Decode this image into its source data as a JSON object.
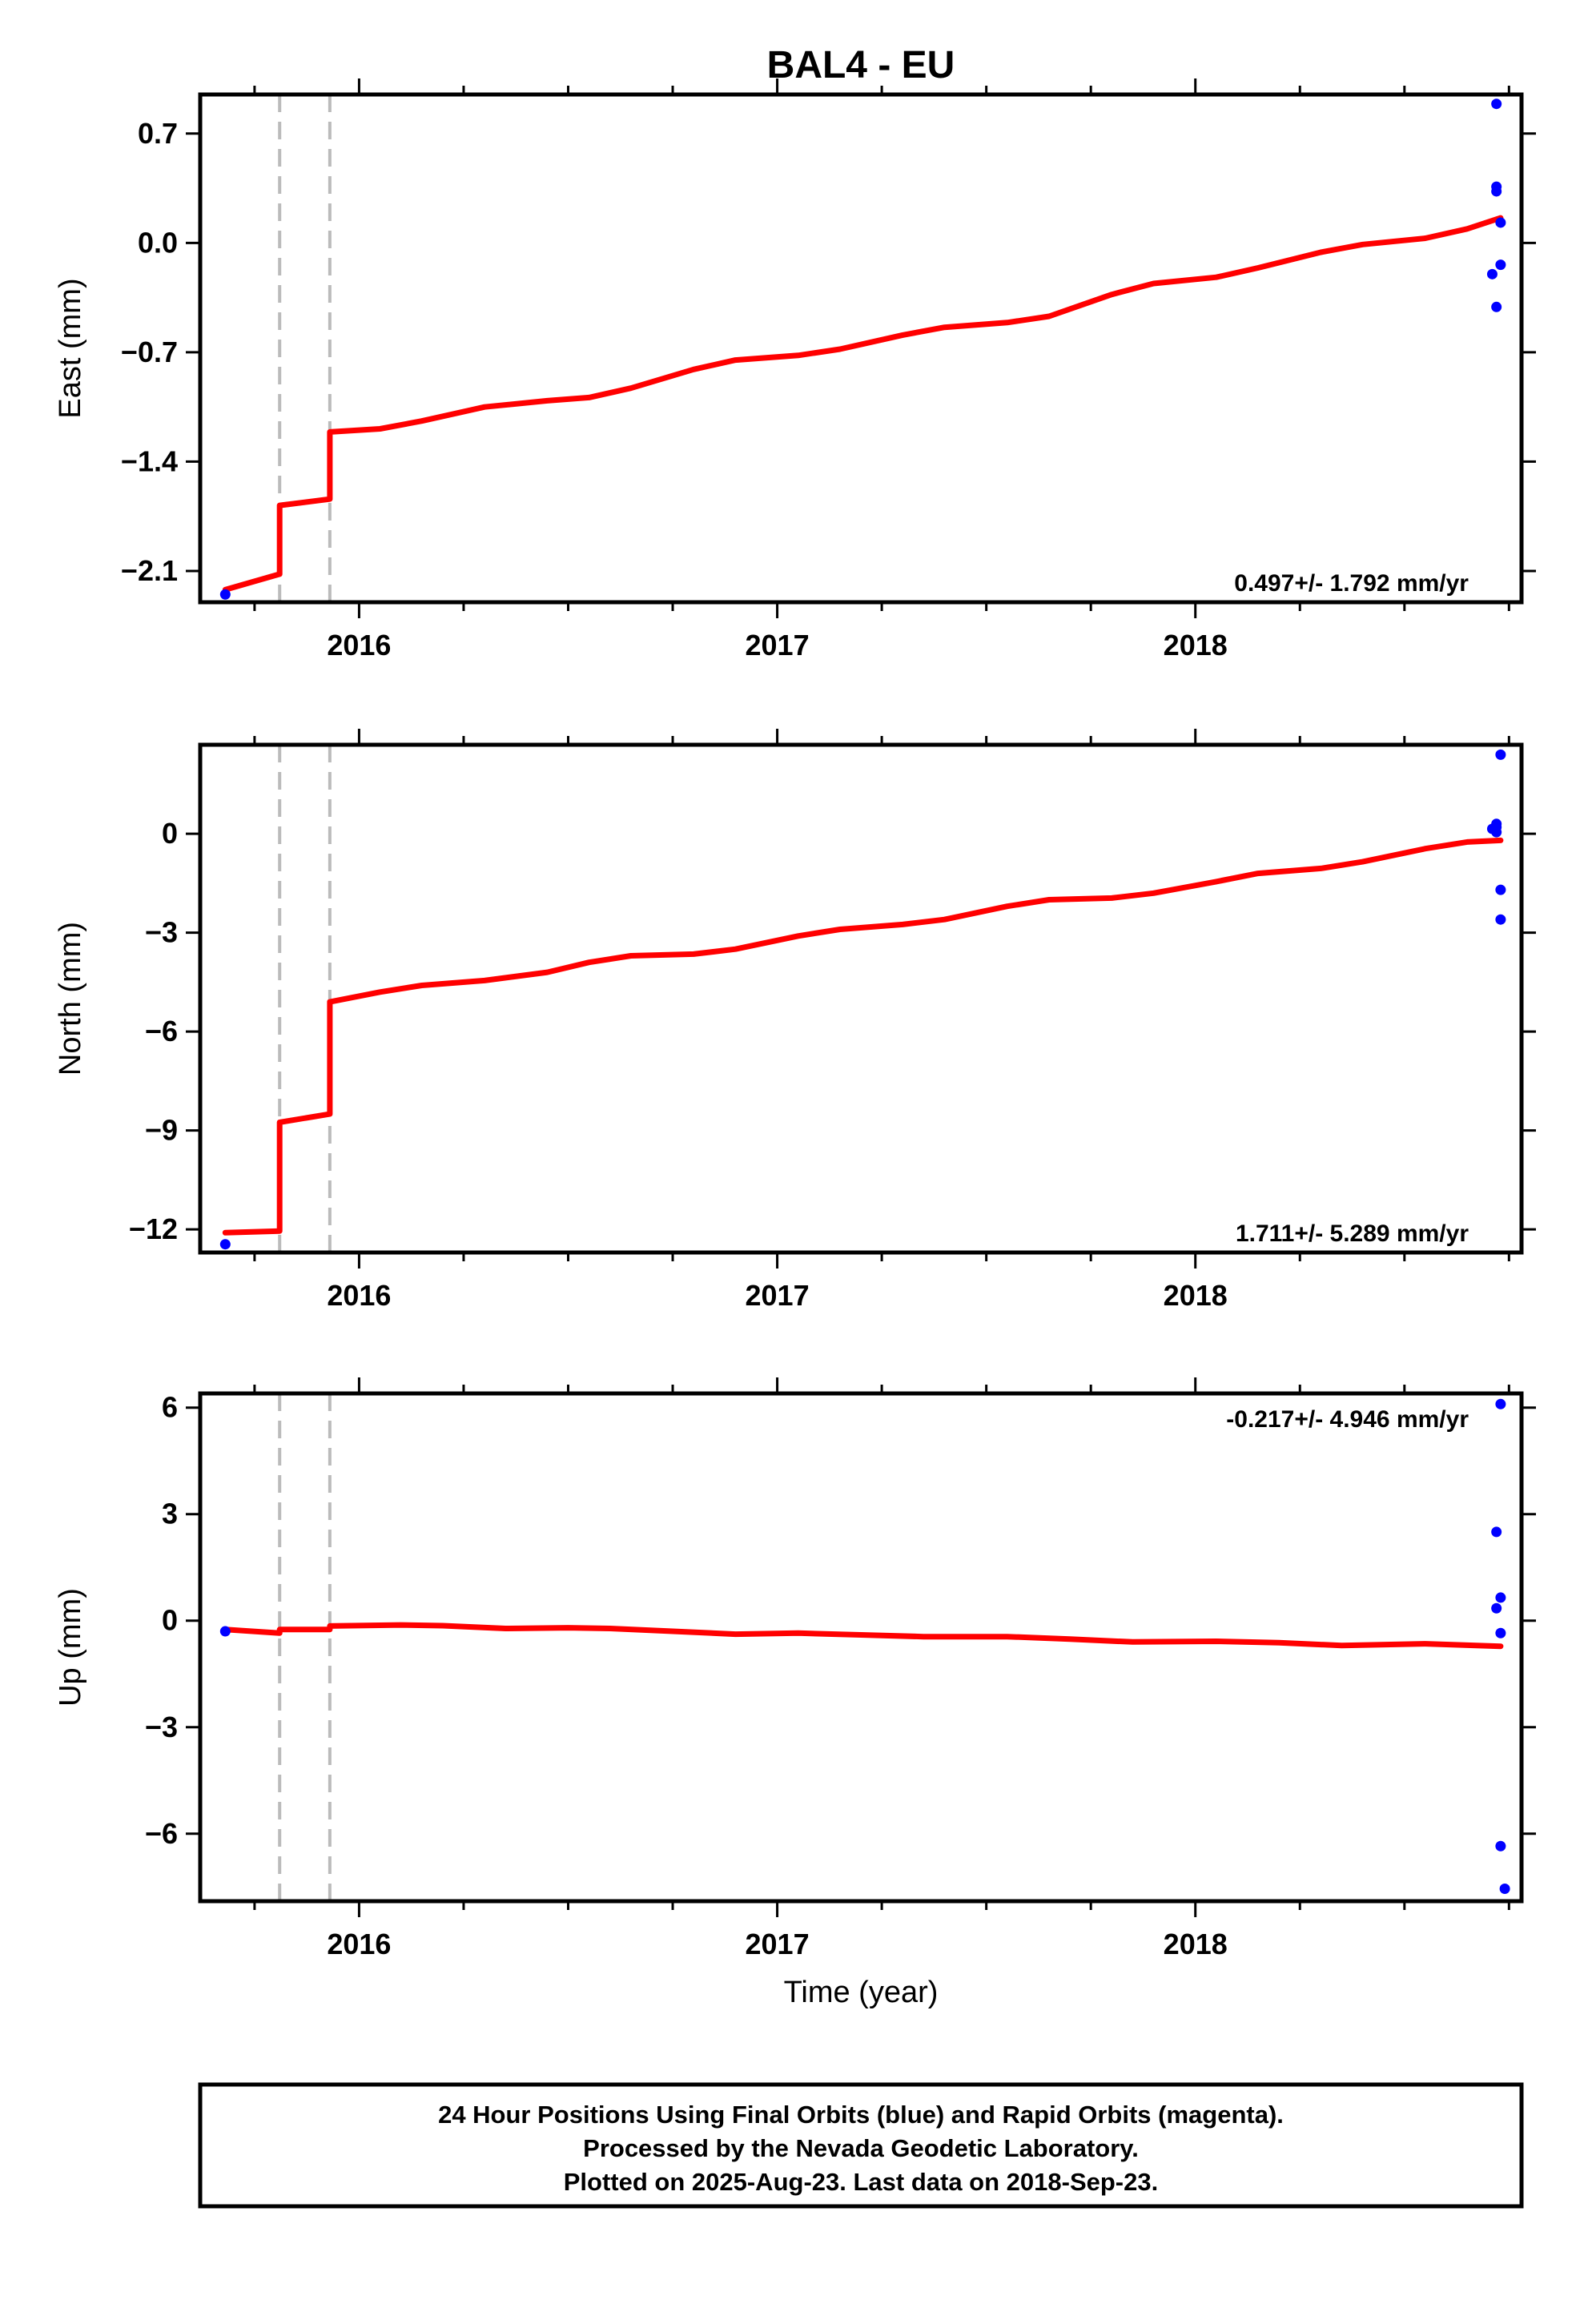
{
  "title": "BAL4 - EU",
  "colors": {
    "fit": "#ff0000",
    "final_orbits": "#0000ff",
    "offset_lines": "#bbbbbb"
  },
  "chart_data": [
    {
      "type": "scatter",
      "panel": "east",
      "ylabel": "East (mm)",
      "xlabel": "",
      "xlim": [
        2015.62,
        2018.78
      ],
      "ylim": [
        -2.3,
        0.95
      ],
      "x_ticks": [
        2016,
        2017,
        2018
      ],
      "y_ticks": [
        0.7,
        0.0,
        -0.7,
        -1.4,
        -2.1
      ],
      "y_tick_labels": [
        "0.7",
        "0.0",
        "−0.7",
        "−1.4",
        "−2.1"
      ],
      "rate_label": "0.497+/- 1.792 mm/yr",
      "rate_position": "bottom-right",
      "offsets": [
        2015.81,
        2015.93
      ],
      "fit": [
        [
          2015.68,
          -2.22
        ],
        [
          2015.81,
          -2.12
        ],
        [
          2015.81,
          -1.68
        ],
        [
          2015.93,
          -1.64
        ],
        [
          2015.93,
          -1.21
        ],
        [
          2016.05,
          -1.19
        ],
        [
          2016.15,
          -1.14
        ],
        [
          2016.3,
          -1.05
        ],
        [
          2016.45,
          -1.01
        ],
        [
          2016.55,
          -0.99
        ],
        [
          2016.65,
          -0.93
        ],
        [
          2016.8,
          -0.81
        ],
        [
          2016.9,
          -0.75
        ],
        [
          2017.05,
          -0.72
        ],
        [
          2017.15,
          -0.68
        ],
        [
          2017.3,
          -0.59
        ],
        [
          2017.4,
          -0.54
        ],
        [
          2017.55,
          -0.51
        ],
        [
          2017.65,
          -0.47
        ],
        [
          2017.8,
          -0.33
        ],
        [
          2017.9,
          -0.26
        ],
        [
          2018.05,
          -0.22
        ],
        [
          2018.15,
          -0.16
        ],
        [
          2018.3,
          -0.06
        ],
        [
          2018.4,
          -0.01
        ],
        [
          2018.55,
          0.03
        ],
        [
          2018.65,
          0.09
        ],
        [
          2018.73,
          0.16
        ]
      ],
      "points": [
        [
          2015.68,
          -2.25
        ],
        [
          2018.72,
          0.89
        ],
        [
          2018.72,
          0.36
        ],
        [
          2018.72,
          0.33
        ],
        [
          2018.73,
          0.13
        ],
        [
          2018.73,
          -0.14
        ],
        [
          2018.71,
          -0.2
        ],
        [
          2018.72,
          -0.41
        ]
      ]
    },
    {
      "type": "scatter",
      "panel": "north",
      "ylabel": "North (mm)",
      "xlabel": "",
      "xlim": [
        2015.62,
        2018.78
      ],
      "ylim": [
        -12.7,
        2.7
      ],
      "x_ticks": [
        2016,
        2017,
        2018
      ],
      "y_ticks": [
        0,
        -3,
        -6,
        -9,
        -12
      ],
      "y_tick_labels": [
        "0",
        "−3",
        "−6",
        "−9",
        "−12"
      ],
      "rate_label": "1.711+/- 5.289 mm/yr",
      "rate_position": "bottom-right",
      "offsets": [
        2015.81,
        2015.93
      ],
      "fit": [
        [
          2015.68,
          -12.1
        ],
        [
          2015.81,
          -12.05
        ],
        [
          2015.81,
          -8.75
        ],
        [
          2015.93,
          -8.5
        ],
        [
          2015.93,
          -5.1
        ],
        [
          2016.05,
          -4.8
        ],
        [
          2016.15,
          -4.6
        ],
        [
          2016.3,
          -4.45
        ],
        [
          2016.45,
          -4.2
        ],
        [
          2016.55,
          -3.9
        ],
        [
          2016.65,
          -3.7
        ],
        [
          2016.8,
          -3.65
        ],
        [
          2016.9,
          -3.5
        ],
        [
          2017.05,
          -3.1
        ],
        [
          2017.15,
          -2.9
        ],
        [
          2017.3,
          -2.75
        ],
        [
          2017.4,
          -2.6
        ],
        [
          2017.55,
          -2.2
        ],
        [
          2017.65,
          -2.0
        ],
        [
          2017.8,
          -1.95
        ],
        [
          2017.9,
          -1.8
        ],
        [
          2018.05,
          -1.45
        ],
        [
          2018.15,
          -1.2
        ],
        [
          2018.3,
          -1.05
        ],
        [
          2018.4,
          -0.85
        ],
        [
          2018.55,
          -0.45
        ],
        [
          2018.65,
          -0.25
        ],
        [
          2018.73,
          -0.2
        ]
      ],
      "points": [
        [
          2015.68,
          -12.45
        ],
        [
          2018.73,
          2.4
        ],
        [
          2018.72,
          0.3
        ],
        [
          2018.72,
          0.2
        ],
        [
          2018.71,
          0.15
        ],
        [
          2018.72,
          0.05
        ],
        [
          2018.73,
          -1.7
        ],
        [
          2018.73,
          -2.6
        ]
      ]
    },
    {
      "type": "scatter",
      "panel": "up",
      "ylabel": "Up (mm)",
      "xlabel": "Time (year)",
      "xlim": [
        2015.62,
        2018.78
      ],
      "ylim": [
        -7.9,
        6.4
      ],
      "x_ticks": [
        2016,
        2017,
        2018
      ],
      "y_ticks": [
        6,
        3,
        0,
        -3,
        -6
      ],
      "y_tick_labels": [
        "6",
        "3",
        "0",
        "−3",
        "−6"
      ],
      "rate_label": "-0.217+/- 4.946 mm/yr",
      "rate_position": "top-right",
      "offsets": [
        2015.81,
        2015.93
      ],
      "fit": [
        [
          2015.68,
          -0.25
        ],
        [
          2015.81,
          -0.35
        ],
        [
          2015.81,
          -0.25
        ],
        [
          2015.93,
          -0.25
        ],
        [
          2015.93,
          -0.15
        ],
        [
          2016.1,
          -0.12
        ],
        [
          2016.2,
          -0.14
        ],
        [
          2016.35,
          -0.22
        ],
        [
          2016.5,
          -0.2
        ],
        [
          2016.6,
          -0.22
        ],
        [
          2016.75,
          -0.3
        ],
        [
          2016.9,
          -0.38
        ],
        [
          2017.05,
          -0.35
        ],
        [
          2017.2,
          -0.4
        ],
        [
          2017.35,
          -0.45
        ],
        [
          2017.55,
          -0.45
        ],
        [
          2017.7,
          -0.52
        ],
        [
          2017.85,
          -0.6
        ],
        [
          2018.05,
          -0.58
        ],
        [
          2018.2,
          -0.62
        ],
        [
          2018.35,
          -0.7
        ],
        [
          2018.55,
          -0.65
        ],
        [
          2018.73,
          -0.72
        ]
      ],
      "points": [
        [
          2015.68,
          -0.3
        ],
        [
          2018.73,
          6.1
        ],
        [
          2018.72,
          2.5
        ],
        [
          2018.73,
          0.65
        ],
        [
          2018.72,
          0.35
        ],
        [
          2018.73,
          -0.35
        ],
        [
          2018.73,
          -6.35
        ],
        [
          2018.74,
          -7.55
        ]
      ]
    }
  ],
  "caption": {
    "lines": [
      "24 Hour Positions Using Final Orbits (blue) and Rapid Orbits (magenta).",
      "Processed by the Nevada Geodetic Laboratory.",
      "Plotted on 2025-Aug-23. Last data on 2018-Sep-23."
    ]
  }
}
